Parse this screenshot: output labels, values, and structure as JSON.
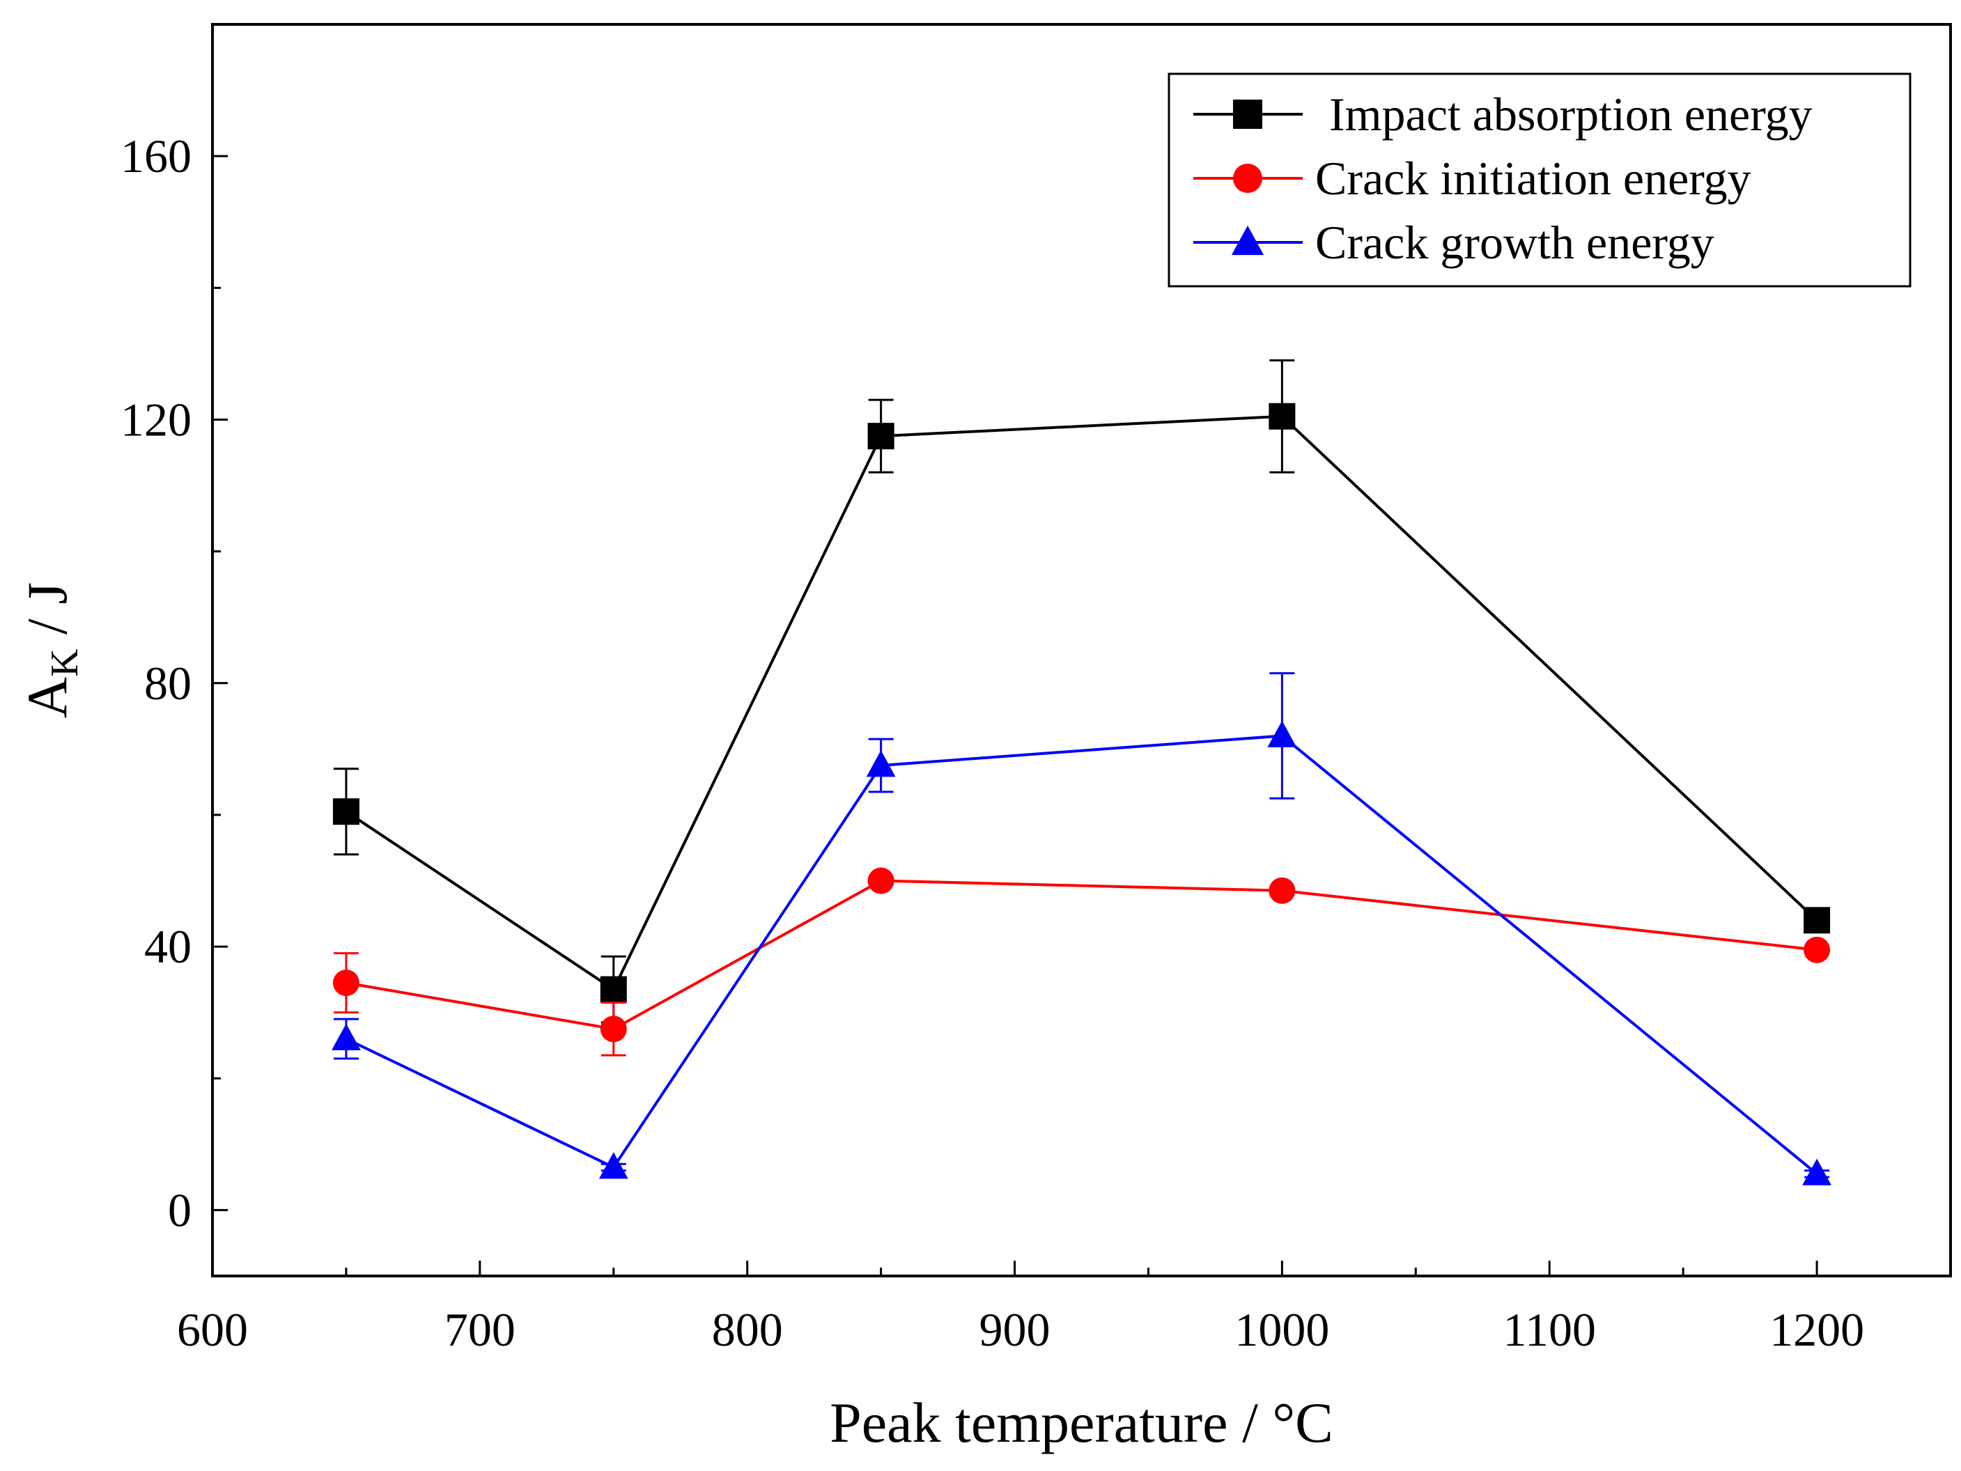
{
  "chart_data": {
    "type": "line",
    "title": "",
    "xlabel": "Peak temperature / °C",
    "ylabel": {
      "main": "A",
      "sub": "K",
      "unit": " / J"
    },
    "xlim": [
      600,
      1250
    ],
    "ylim": [
      -10,
      180
    ],
    "xticks": [
      600,
      700,
      800,
      900,
      1000,
      1100,
      1200
    ],
    "xtick_labels": [
      "600",
      "700",
      "800",
      "900",
      "1000",
      "1100",
      "1200"
    ],
    "yticks": [
      0,
      40,
      80,
      120,
      160
    ],
    "ytick_labels": [
      "0",
      "40",
      "80",
      "120",
      "160"
    ],
    "x": [
      650,
      750,
      850,
      1000,
      1200
    ],
    "legend_position": "top-right",
    "series": [
      {
        "name": "Impact absorption energy",
        "color": "#000000",
        "marker": "square",
        "values": [
          60.5,
          33.5,
          117.5,
          120.5,
          44
        ],
        "errors": [
          6.5,
          5,
          5.5,
          8.5,
          1.5
        ]
      },
      {
        "name": "Crack initiation energy",
        "color": "#ff0000",
        "marker": "circle",
        "values": [
          34.5,
          27.5,
          50,
          48.5,
          39.5
        ],
        "errors": [
          4.5,
          4,
          0.5,
          0.5,
          0.5
        ]
      },
      {
        "name": "Crack growth energy",
        "color": "#0000ff",
        "marker": "triangle",
        "values": [
          26,
          6.5,
          67.5,
          72,
          5.5
        ],
        "errors": [
          3,
          0.5,
          4,
          9.5,
          0.5
        ]
      }
    ]
  }
}
